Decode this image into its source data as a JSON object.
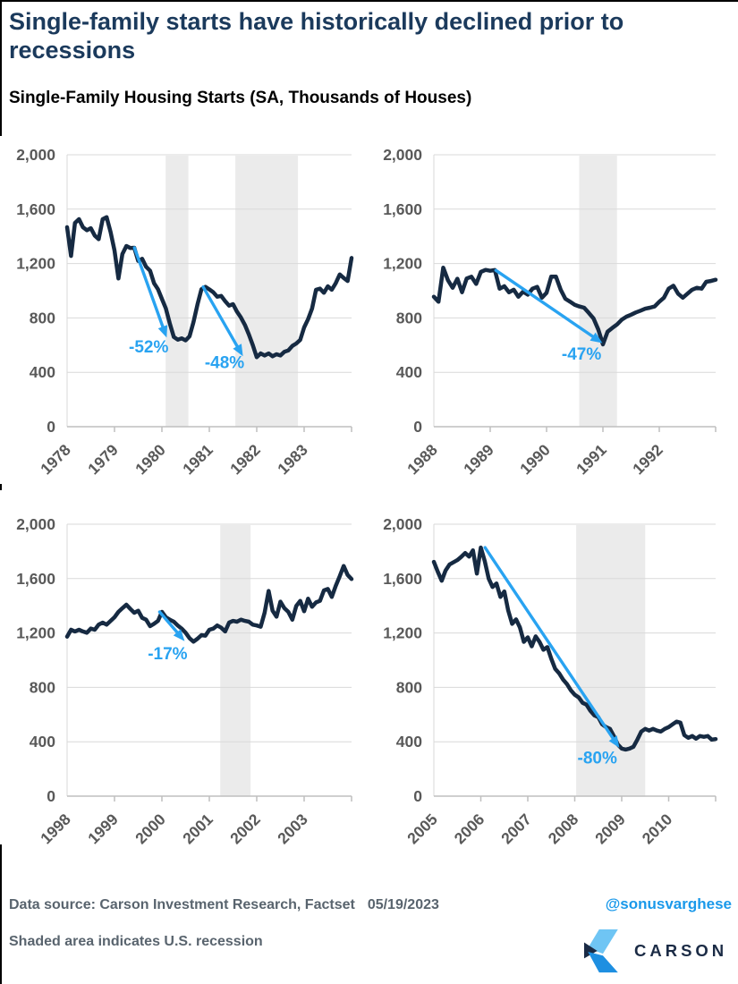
{
  "header": {
    "title_line1": "Single-family starts have historically declined prior to",
    "title_line2": "recessions",
    "subtitle": "Single-Family Housing Starts (SA, Thousands of Houses)"
  },
  "footer": {
    "source_line": "Data source: Carson Investment Research, Factset",
    "date": "05/19/2023",
    "note_line": "Shaded area indicates U.S. recession",
    "handle": "@sonusvarghese",
    "brand": "CARSON"
  },
  "colors": {
    "title_navy": "#1B3A5C",
    "line_navy": "#162A42",
    "arrow_blue": "#29A3F1",
    "grid_gray": "#D9D9D9",
    "axis_gray": "#BFBFBF",
    "band_gray": "#EBEBEB",
    "tick_label_gray": "#595959",
    "footer_gray": "#59646E",
    "handle_blue": "#1A99EA",
    "logo_light_blue": "#6FC5F4",
    "logo_mid_blue": "#1E8FE1",
    "logo_navy": "#1B2B45"
  },
  "chart_data": [
    {
      "type": "line",
      "period": "1978-1983",
      "x_start_year": 1978,
      "x_years": 6,
      "points_per_year": 12,
      "ylim": [
        0,
        2000
      ],
      "y_tick_values": [
        0,
        400,
        800,
        1200,
        1600,
        2000
      ],
      "y_tick_labels": [
        "0",
        "400",
        "800",
        "1,200",
        "1,600",
        "2,000"
      ],
      "x_tick_labels": [
        "1978",
        "1979",
        "1980",
        "1981",
        "1982",
        "1983"
      ],
      "values": [
        1467,
        1256,
        1498,
        1526,
        1467,
        1445,
        1460,
        1406,
        1379,
        1526,
        1541,
        1432,
        1296,
        1090,
        1270,
        1329,
        1314,
        1316,
        1219,
        1235,
        1176,
        1147,
        1055,
        1011,
        940,
        870,
        760,
        660,
        640,
        650,
        635,
        665,
        770,
        900,
        1011,
        1028,
        1010,
        989,
        956,
        962,
        923,
        890,
        901,
        846,
        803,
        748,
        678,
        600,
        511,
        539,
        524,
        539,
        518,
        533,
        524,
        551,
        561,
        594,
        612,
        638,
        730,
        791,
        868,
        1007,
        1015,
        985,
        1033,
        1007,
        1055,
        1120,
        1094,
        1072,
        1241
      ],
      "recession_bands": [
        [
          1980.08,
          1980.56
        ],
        [
          1981.55,
          1982.87
        ]
      ],
      "annotations": [
        {
          "label": "-52%",
          "from": [
            1979.42,
            1316
          ],
          "to": [
            1980.1,
            655
          ],
          "label_at": [
            1979.72,
            545
          ]
        },
        {
          "label": "-48%",
          "from": [
            1980.87,
            1028
          ],
          "to": [
            1981.71,
            518
          ],
          "label_at": [
            1981.32,
            430
          ]
        }
      ]
    },
    {
      "type": "line",
      "period": "1988-1992",
      "x_start_year": 1988,
      "x_years": 5,
      "points_per_year": 12,
      "ylim": [
        0,
        2000
      ],
      "y_tick_values": [
        0,
        400,
        800,
        1200,
        1600,
        2000
      ],
      "y_tick_labels": [
        "0",
        "400",
        "800",
        "1,200",
        "1,600",
        "2,000"
      ],
      "x_tick_labels": [
        "1988",
        "1989",
        "1990",
        "1991",
        "1992"
      ],
      "values": [
        956,
        919,
        1170,
        1077,
        1022,
        1088,
        989,
        1090,
        1103,
        1050,
        1138,
        1153,
        1147,
        1152,
        1015,
        1033,
        989,
        1007,
        956,
        993,
        971,
        1015,
        1028,
        949,
        985,
        1103,
        1103,
        1007,
        941,
        919,
        897,
        884,
        875,
        836,
        796,
        715,
        605,
        699,
        726,
        752,
        787,
        809,
        824,
        840,
        853,
        868,
        875,
        884,
        919,
        949,
        1015,
        1037,
        978,
        949,
        978,
        1007,
        1022,
        1015,
        1066,
        1072,
        1081
      ],
      "recession_bands": [
        [
          1990.58,
          1991.25
        ]
      ],
      "annotations": [
        {
          "label": "-47%",
          "from": [
            1989.1,
            1150
          ],
          "to": [
            1990.99,
            615
          ],
          "label_at": [
            1990.62,
            495
          ]
        }
      ]
    },
    {
      "type": "line",
      "period": "1998-2003",
      "x_start_year": 1998,
      "x_years": 6,
      "points_per_year": 12,
      "ylim": [
        0,
        2000
      ],
      "y_tick_values": [
        0,
        400,
        800,
        1200,
        1600,
        2000
      ],
      "y_tick_labels": [
        "0",
        "400",
        "800",
        "1,200",
        "1,600",
        "2,000"
      ],
      "x_tick_labels": [
        "1998",
        "1999",
        "2000",
        "2001",
        "2002",
        "2003"
      ],
      "values": [
        1173,
        1224,
        1211,
        1224,
        1211,
        1202,
        1232,
        1224,
        1261,
        1276,
        1261,
        1289,
        1316,
        1355,
        1382,
        1408,
        1377,
        1349,
        1364,
        1311,
        1298,
        1250,
        1268,
        1289,
        1355,
        1316,
        1298,
        1283,
        1255,
        1232,
        1202,
        1162,
        1136,
        1158,
        1184,
        1180,
        1224,
        1232,
        1255,
        1239,
        1211,
        1276,
        1289,
        1283,
        1298,
        1289,
        1283,
        1261,
        1255,
        1246,
        1349,
        1509,
        1364,
        1320,
        1430,
        1382,
        1355,
        1298,
        1399,
        1436,
        1360,
        1452,
        1393,
        1425,
        1436,
        1513,
        1524,
        1465,
        1546,
        1618,
        1693,
        1627,
        1597
      ],
      "recession_bands": [
        [
          2001.23,
          2001.87
        ]
      ],
      "annotations": [
        {
          "label": "-17%",
          "from": [
            1999.95,
            1355
          ],
          "to": [
            2000.48,
            1140
          ],
          "label_at": [
            2000.12,
            1005
          ]
        }
      ]
    },
    {
      "type": "line",
      "period": "2005-2010",
      "x_start_year": 2005,
      "x_years": 6,
      "points_per_year": 12,
      "ylim": [
        0,
        2000
      ],
      "y_tick_values": [
        0,
        400,
        800,
        1200,
        1600,
        2000
      ],
      "y_tick_labels": [
        "0",
        "400",
        "800",
        "1,200",
        "1,600",
        "2,000"
      ],
      "x_tick_labels": [
        "2005",
        "2006",
        "2007",
        "2008",
        "2009",
        "2010"
      ],
      "values": [
        1723,
        1650,
        1584,
        1660,
        1703,
        1720,
        1736,
        1760,
        1788,
        1762,
        1808,
        1637,
        1828,
        1729,
        1600,
        1538,
        1564,
        1465,
        1505,
        1366,
        1267,
        1300,
        1241,
        1135,
        1168,
        1102,
        1175,
        1135,
        1076,
        1096,
        1010,
        937,
        904,
        858,
        825,
        779,
        746,
        726,
        686,
        673,
        627,
        594,
        581,
        528,
        508,
        495,
        442,
        380,
        350,
        343,
        350,
        363,
        416,
        475,
        495,
        482,
        495,
        482,
        475,
        495,
        508,
        528,
        548,
        541,
        449,
        429,
        442,
        423,
        442,
        436,
        442,
        416,
        420
      ],
      "recession_bands": [
        [
          2008.03,
          2009.5
        ]
      ],
      "annotations": [
        {
          "label": "-80%",
          "from": [
            2006.09,
            1828
          ],
          "to": [
            2008.95,
            355
          ],
          "label_at": [
            2008.48,
            240
          ]
        }
      ]
    }
  ]
}
